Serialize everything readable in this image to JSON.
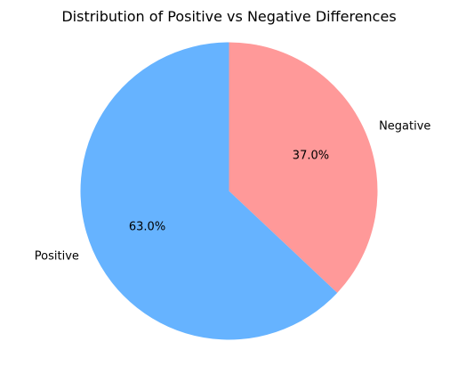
{
  "chart_data": {
    "type": "pie",
    "title": "Distribution of Positive vs Negative Differences",
    "slices": [
      {
        "label": "Negative",
        "value": 37.0,
        "pct_label": "37.0%",
        "color": "#ff9999"
      },
      {
        "label": "Positive",
        "value": 63.0,
        "pct_label": "63.0%",
        "color": "#66b3ff"
      }
    ],
    "start_angle_deg": 90,
    "direction": "clockwise"
  }
}
